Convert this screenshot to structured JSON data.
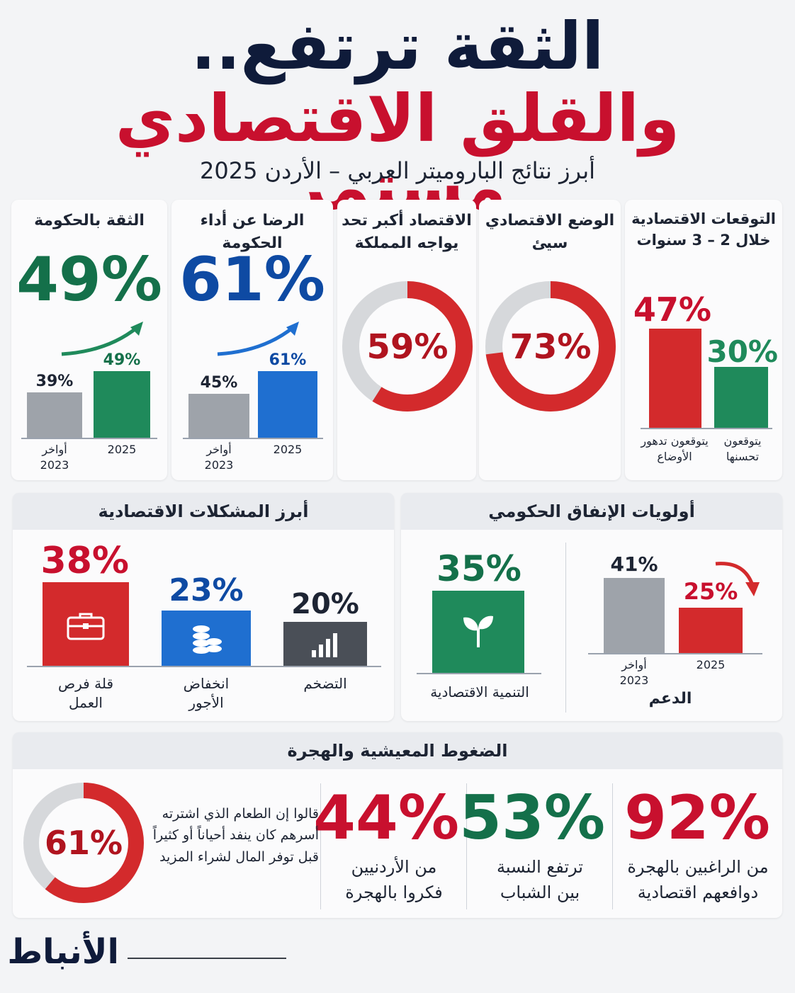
{
  "header": {
    "title_line1": "الثقة ترتفع..",
    "title_line2": "والقلق الاقتصادي مستمر",
    "subtitle": "أبرز نتائج الباروميتر العربي – الأردن 2025"
  },
  "colors": {
    "red": "#d32a2c",
    "green": "#1f8a5b",
    "blue": "#1f6fd0",
    "gray": "#9ea3aa",
    "dark_gray": "#4a4f57",
    "navy": "#0f1b3a"
  },
  "cards": {
    "expectations": {
      "title": "التوقعات الاقتصادية خلال 2 – 3 سنوات",
      "worse_value": "47%",
      "worse_label": "يتوقعون تدهور الأوضاع",
      "better_value": "30%",
      "better_label": "يتوقعون تحسنها"
    },
    "economy_bad": {
      "title": "الوضع الاقتصادي سيئ",
      "value": "73%"
    },
    "biggest_challenge": {
      "title": "الاقتصاد أكبر تحد يواجه المملكة",
      "value": "59%"
    },
    "gov_satisfaction": {
      "title": "الرضا عن أداء الحكومة",
      "big": "61%",
      "prev_value": "45%",
      "prev_label": "أواخر 2023",
      "curr_value": "61%",
      "curr_label": "2025"
    },
    "gov_trust": {
      "title": "الثقة بالحكومة",
      "big": "49%",
      "prev_value": "39%",
      "prev_label": "أواخر 2023",
      "curr_value": "49%",
      "curr_label": "2025"
    }
  },
  "spending": {
    "title": "أولويات الإنفاق الحكومي",
    "development_value": "35%",
    "development_label": "التنمية الاقتصادية",
    "subsidy_label": "الدعم",
    "subsidy_prev_value": "41%",
    "subsidy_prev_label": "أواخر 2023",
    "subsidy_curr_value": "25%",
    "subsidy_curr_label": "2025"
  },
  "problems": {
    "title": "أبرز المشكلات الاقتصادية",
    "items": [
      {
        "value": "38%",
        "label": "قلة فرص العمل"
      },
      {
        "value": "23%",
        "label": "انخفاض الأجور"
      },
      {
        "value": "20%",
        "label": "التضخم"
      }
    ]
  },
  "migration": {
    "title": "الضغوط المعيشية والهجرة",
    "items": [
      {
        "value": "92%",
        "text": "من الراغبين بالهجرة دوافعهم اقتصادية"
      },
      {
        "value": "53%",
        "text": "ترتفع النسبة بين الشباب"
      },
      {
        "value": "44%",
        "text": "من الأردنيين فكروا بالهجرة"
      }
    ],
    "food_value": "61%",
    "food_text": "قالوا إن الطعام الذي اشترته أسرهم كان ينفد أحياناً أو كثيراً قبل توفر المال لشراء المزيد"
  },
  "footer": {
    "brand": "الأنباط"
  },
  "chart_data": [
    {
      "type": "bar",
      "title": "التوقعات الاقتصادية خلال 2 – 3 سنوات",
      "categories": [
        "يتوقعون تدهور الأوضاع",
        "يتوقعون تحسنها"
      ],
      "values": [
        47,
        30
      ],
      "ylim": [
        0,
        50
      ]
    },
    {
      "type": "pie",
      "title": "الوضع الاقتصادي سيئ",
      "values": [
        73,
        27
      ]
    },
    {
      "type": "pie",
      "title": "الاقتصاد أكبر تحد يواجه المملكة",
      "values": [
        59,
        41
      ]
    },
    {
      "type": "bar",
      "title": "الرضا عن أداء الحكومة",
      "categories": [
        "أواخر 2023",
        "2025"
      ],
      "values": [
        45,
        61
      ],
      "ylim": [
        0,
        70
      ]
    },
    {
      "type": "bar",
      "title": "الثقة بالحكومة",
      "categories": [
        "أواخر 2023",
        "2025"
      ],
      "values": [
        39,
        49
      ],
      "ylim": [
        0,
        60
      ]
    },
    {
      "type": "bar",
      "title": "الدعم",
      "categories": [
        "أواخر 2023",
        "2025"
      ],
      "values": [
        41,
        25
      ],
      "ylim": [
        0,
        45
      ]
    },
    {
      "type": "bar",
      "title": "التنمية الاقتصادية",
      "categories": [
        "التنمية الاقتصادية"
      ],
      "values": [
        35
      ],
      "ylim": [
        0,
        45
      ]
    },
    {
      "type": "bar",
      "title": "أبرز المشكلات الاقتصادية",
      "categories": [
        "قلة فرص العمل",
        "انخفاض الأجور",
        "التضخم"
      ],
      "values": [
        38,
        23,
        20
      ],
      "ylim": [
        0,
        45
      ]
    },
    {
      "type": "pie",
      "title": "الضغوط المعيشية والهجرة",
      "values": [
        61,
        39
      ]
    }
  ]
}
